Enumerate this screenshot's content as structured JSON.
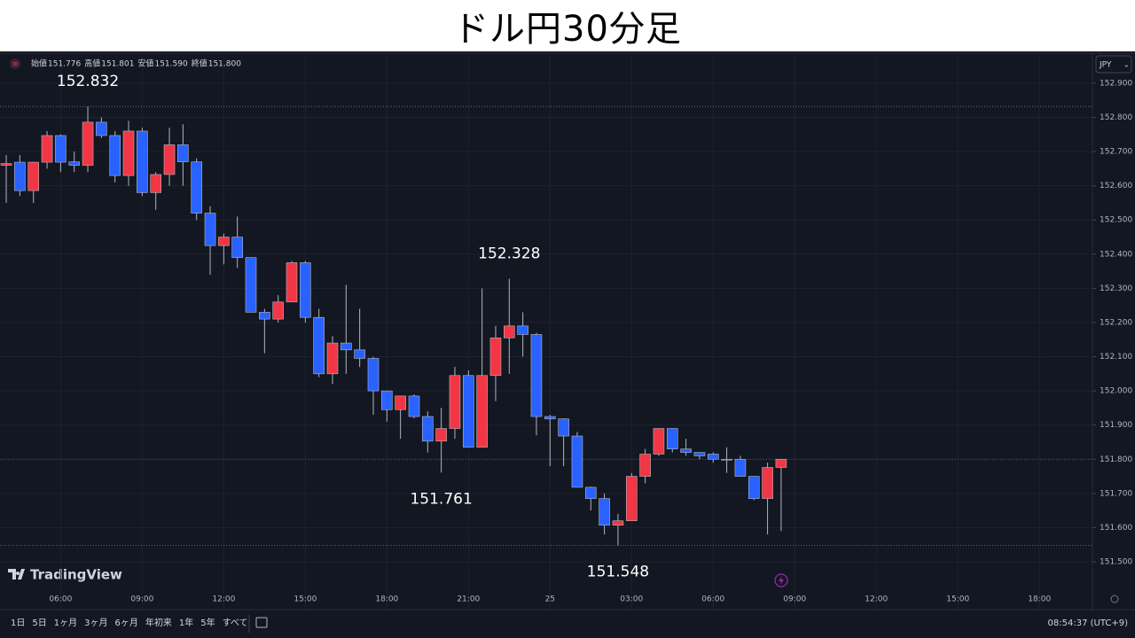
{
  "chart_data": {
    "type": "candlestick",
    "title": "ドル円30分足",
    "ohlc_legend": [
      {
        "label": "始値",
        "value": "151.776"
      },
      {
        "label": "高値",
        "value": "151.801"
      },
      {
        "label": "安値",
        "value": "151.590"
      },
      {
        "label": "終値",
        "value": "151.800"
      }
    ],
    "currency": "JPY",
    "brand": "TradingView",
    "up_color": "#f23645",
    "down_color": "#2962ff",
    "grid": true,
    "open": [
      152.66,
      152.669,
      152.586,
      152.669,
      152.747,
      152.67,
      152.66,
      152.786,
      152.747,
      152.63,
      152.76,
      152.58,
      152.633,
      152.72,
      152.67,
      152.52,
      152.425,
      152.45,
      152.39,
      152.23,
      152.21,
      152.26,
      152.375,
      152.215,
      152.05,
      152.14,
      152.12,
      152.095,
      152.0,
      151.945,
      151.985,
      151.925,
      151.853,
      151.89,
      152.045,
      151.835,
      152.045,
      152.155,
      152.19,
      152.165,
      151.925,
      151.918,
      151.868,
      151.718,
      151.685,
      151.607,
      151.62,
      151.75,
      151.815,
      151.89,
      151.83,
      151.82,
      151.815,
      151.8,
      151.8,
      151.75,
      151.685,
      151.776
    ],
    "high": [
      152.69,
      152.69,
      152.67,
      152.76,
      152.75,
      152.7,
      152.832,
      152.8,
      152.76,
      152.79,
      152.77,
      152.64,
      152.77,
      152.78,
      152.68,
      152.54,
      152.46,
      152.51,
      152.39,
      152.24,
      152.28,
      152.38,
      152.38,
      152.24,
      152.16,
      152.31,
      152.24,
      152.1,
      152.0,
      151.985,
      151.99,
      151.94,
      151.95,
      152.07,
      152.06,
      152.3,
      152.19,
      152.328,
      152.23,
      152.17,
      151.93,
      151.92,
      151.88,
      151.72,
      151.7,
      151.64,
      151.76,
      151.83,
      151.89,
      151.89,
      151.86,
      151.82,
      151.82,
      151.835,
      151.81,
      151.75,
      151.79,
      151.801
    ],
    "low": [
      152.55,
      152.57,
      152.55,
      152.65,
      152.64,
      152.64,
      152.64,
      152.74,
      152.61,
      152.6,
      152.57,
      152.53,
      152.6,
      152.6,
      152.5,
      152.34,
      152.37,
      152.36,
      152.23,
      152.11,
      152.2,
      152.26,
      152.2,
      152.04,
      152.02,
      152.05,
      152.07,
      151.93,
      151.91,
      151.86,
      151.92,
      151.82,
      151.761,
      151.86,
      151.835,
      151.835,
      151.97,
      152.05,
      152.1,
      151.87,
      151.78,
      151.78,
      151.72,
      151.65,
      151.58,
      151.548,
      151.62,
      151.73,
      151.81,
      151.82,
      151.81,
      151.8,
      151.79,
      151.76,
      151.75,
      151.68,
      151.58,
      151.59
    ],
    "close": [
      152.665,
      152.586,
      152.669,
      152.747,
      152.669,
      152.66,
      152.786,
      152.747,
      152.63,
      152.76,
      152.58,
      152.633,
      152.72,
      152.67,
      152.52,
      152.425,
      152.45,
      152.39,
      152.23,
      152.21,
      152.26,
      152.375,
      152.215,
      152.05,
      152.14,
      152.12,
      152.095,
      152.0,
      151.945,
      151.985,
      151.925,
      151.853,
      151.89,
      152.045,
      151.835,
      152.045,
      152.155,
      152.19,
      152.165,
      151.925,
      151.918,
      151.868,
      151.718,
      151.685,
      151.607,
      151.62,
      151.75,
      151.815,
      151.89,
      151.83,
      151.82,
      151.81,
      151.8,
      151.798,
      151.75,
      151.685,
      151.776,
      151.8
    ],
    "xlim": [
      -0.46,
      79.9
    ],
    "xticks": [
      {
        "value": 4,
        "label": "06:00"
      },
      {
        "value": 10,
        "label": "09:00"
      },
      {
        "value": 16,
        "label": "12:00"
      },
      {
        "value": 22,
        "label": "15:00"
      },
      {
        "value": 28,
        "label": "18:00"
      },
      {
        "value": 34,
        "label": "21:00"
      },
      {
        "value": 40,
        "label": "25"
      },
      {
        "value": 46,
        "label": "03:00"
      },
      {
        "value": 52,
        "label": "06:00"
      },
      {
        "value": 58,
        "label": "09:00"
      },
      {
        "value": 64,
        "label": "12:00"
      },
      {
        "value": 70,
        "label": "15:00"
      },
      {
        "value": 76,
        "label": "18:00"
      }
    ],
    "ylim": [
      151.36,
      152.988
    ],
    "yticks": [
      {
        "value": 152.9,
        "label": "152.900"
      },
      {
        "value": 152.8,
        "label": "152.800"
      },
      {
        "value": 152.7,
        "label": "152.700"
      },
      {
        "value": 152.6,
        "label": "152.600"
      },
      {
        "value": 152.5,
        "label": "152.500"
      },
      {
        "value": 152.4,
        "label": "152.400"
      },
      {
        "value": 152.3,
        "label": "152.300"
      },
      {
        "value": 152.2,
        "label": "152.200"
      },
      {
        "value": 152.1,
        "label": "152.100"
      },
      {
        "value": 152.0,
        "label": "152.000"
      },
      {
        "value": 151.9,
        "label": "151.900"
      },
      {
        "value": 151.8,
        "label": "151.800"
      },
      {
        "value": 151.7,
        "label": "151.700"
      },
      {
        "value": 151.6,
        "label": "151.600"
      },
      {
        "value": 151.5,
        "label": "151.500"
      }
    ],
    "annotations": [
      {
        "value": 152.832,
        "label": "152.832"
      },
      {
        "value": 152.328,
        "label": "152.328"
      },
      {
        "value": 151.761,
        "label": "151.761"
      },
      {
        "value": 151.548,
        "label": "151.548"
      }
    ],
    "toolbar": {
      "ranges": [
        "1日",
        "5日",
        "1ヶ月",
        "3ヶ月",
        "6ヶ月",
        "年初来",
        "1年",
        "5年",
        "すべて"
      ],
      "clock": "08:54:37 (UTC+9)"
    }
  }
}
